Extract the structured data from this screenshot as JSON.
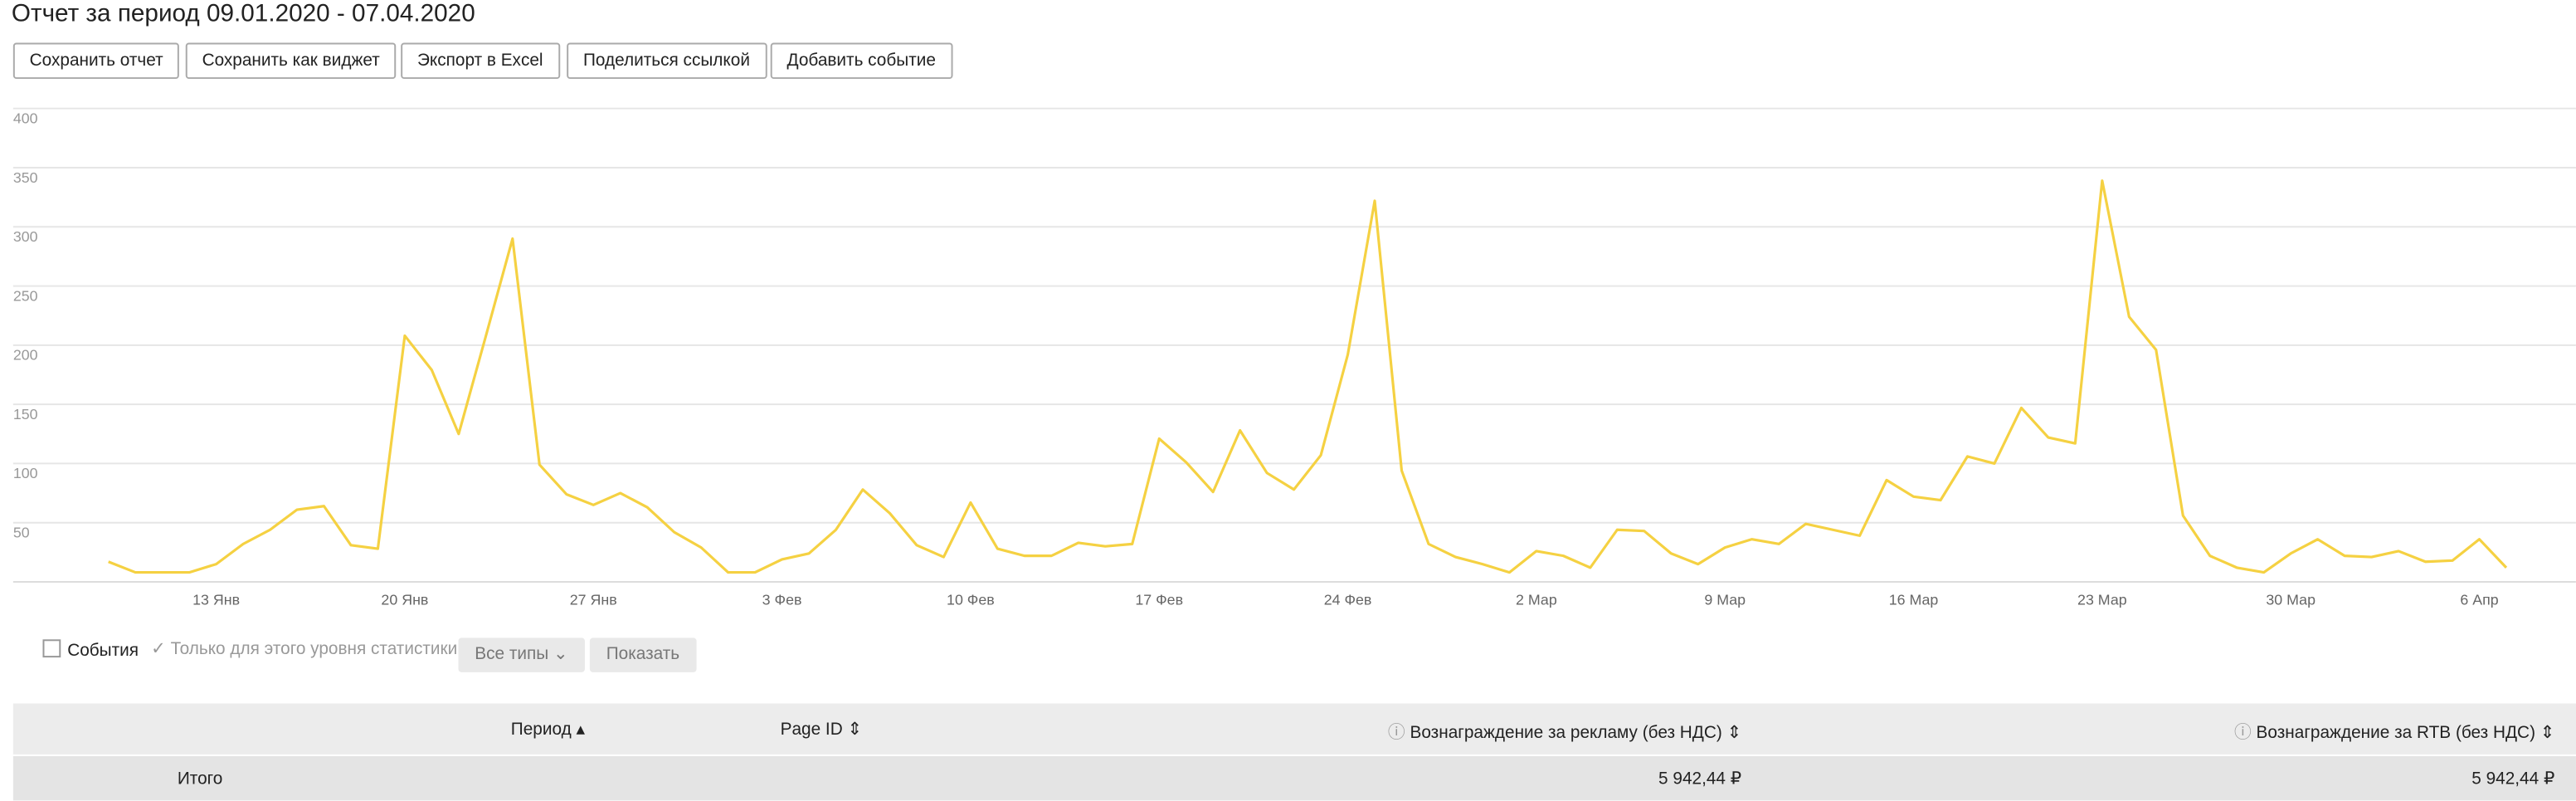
{
  "header": {
    "title": "Отчет за период 09.01.2020 - 07.04.2020"
  },
  "toolbar": {
    "buttons": [
      "Сохранить отчет",
      "Сохранить как виджет",
      "Экспорт в Excel",
      "Поделиться ссылкой",
      "Добавить событие"
    ]
  },
  "chart_data": {
    "type": "line",
    "color": "#f5d142",
    "grid": true,
    "ylim": [
      0,
      400
    ],
    "yticks": [
      50,
      100,
      150,
      200,
      250,
      300,
      350,
      400
    ],
    "categories": [
      null,
      null,
      null,
      null,
      "13 Янв",
      null,
      null,
      null,
      null,
      null,
      null,
      "20 Янв",
      null,
      null,
      null,
      null,
      null,
      null,
      "27 Янв",
      null,
      null,
      null,
      null,
      null,
      null,
      "3 Фев",
      null,
      null,
      null,
      null,
      null,
      null,
      "10 Фев",
      null,
      null,
      null,
      null,
      null,
      null,
      "17 Фев",
      null,
      null,
      null,
      null,
      null,
      null,
      "24 Фев",
      null,
      null,
      null,
      null,
      null,
      null,
      "2 Мар",
      null,
      null,
      null,
      null,
      null,
      null,
      "9 Мар",
      null,
      null,
      null,
      null,
      null,
      null,
      "16 Мар",
      null,
      null,
      null,
      null,
      null,
      null,
      "23 Мар",
      null,
      null,
      null,
      null,
      null,
      null,
      "30 Мар",
      null,
      null,
      null,
      null,
      null,
      null,
      "6 Апр",
      null
    ],
    "values": [
      17,
      8,
      8,
      8,
      15,
      32,
      44,
      61,
      64,
      31,
      28,
      208,
      179,
      125,
      207,
      290,
      99,
      74,
      65,
      75,
      63,
      42,
      29,
      8,
      8,
      19,
      24,
      44,
      78,
      58,
      31,
      21,
      67,
      28,
      22,
      22,
      33,
      30,
      32,
      121,
      101,
      76,
      128,
      92,
      78,
      107,
      192,
      322,
      94,
      32,
      21,
      15,
      8,
      26,
      22,
      12,
      44,
      43,
      24,
      15,
      29,
      36,
      32,
      49,
      44,
      39,
      86,
      72,
      69,
      106,
      100,
      147,
      122,
      117,
      339,
      224,
      196,
      56,
      22,
      12,
      8,
      24,
      36,
      22,
      21,
      26,
      17,
      18,
      36,
      12
    ]
  },
  "filters": {
    "events": "События",
    "level_only": "Только для этого уровня статистики",
    "types": "Все типы",
    "show": "Показать"
  },
  "table": {
    "headers": [
      "Период",
      "Page ID",
      "Вознаграждение за рекламу (без НДС)",
      "Вознаграждение за RTB (без НДС)"
    ],
    "total": {
      "label": "Итого",
      "values": [
        "5 942,44 ₽",
        "5 942,44 ₽"
      ]
    }
  }
}
